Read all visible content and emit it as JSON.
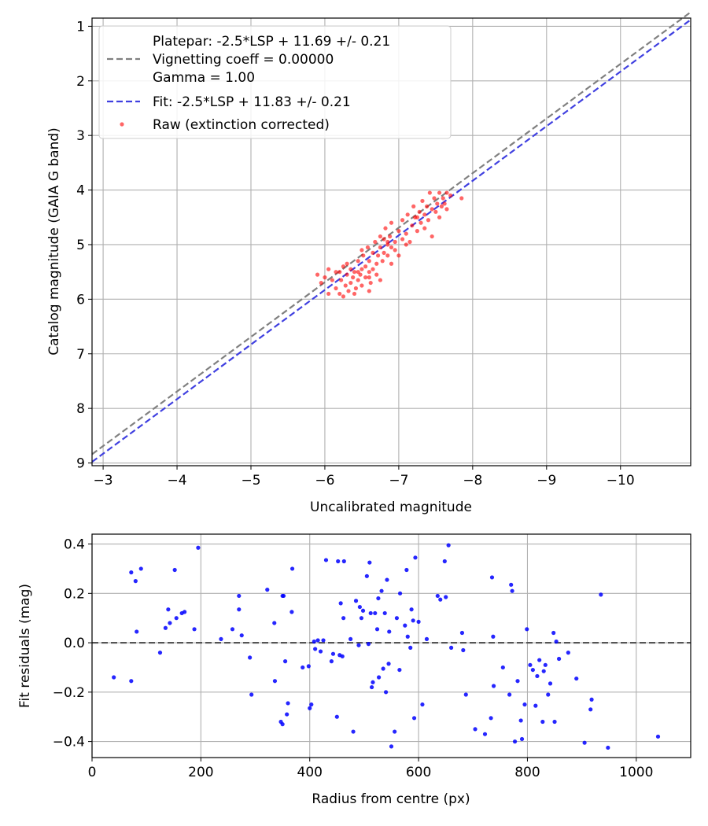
{
  "chart_data": [
    {
      "type": "scatter",
      "xlabel": "Uncalibrated magnitude",
      "ylabel": "Catalog magnitude (GAIA G band)",
      "xlim": [
        -2.85,
        -10.95
      ],
      "ylim": [
        9.05,
        0.85
      ],
      "x_ticks": [
        -3,
        -4,
        -5,
        -6,
        -7,
        -8,
        -9,
        -10
      ],
      "x_tick_labels": [
        "−3",
        "−4",
        "−5",
        "−6",
        "−7",
        "−8",
        "−9",
        "−10"
      ],
      "y_ticks": [
        1,
        2,
        3,
        4,
        5,
        6,
        7,
        8,
        9
      ],
      "y_tick_labels": [
        "1",
        "2",
        "3",
        "4",
        "5",
        "6",
        "7",
        "8",
        "9"
      ],
      "grid": true,
      "legend_position": "top-left",
      "legend": {
        "platepar_lines": [
          "Platepar: -2.5*LSP + 11.69 +/- 0.21",
          "Vignetting coeff = 0.00000",
          "Gamma = 1.00"
        ],
        "fit": "Fit: -2.5*LSP + 11.83 +/- 0.21",
        "raw": "Raw (extinction corrected)"
      },
      "lines": [
        {
          "name": "Platepar",
          "x": [
            -2.85,
            -10.95
          ],
          "y": [
            8.84,
            0.74
          ],
          "color": "#808080",
          "dash": true
        },
        {
          "name": "Fit",
          "x": [
            -2.85,
            -10.95
          ],
          "y": [
            8.98,
            0.88
          ],
          "color": "#4040e0",
          "dash": true
        }
      ],
      "series": [
        {
          "name": "Raw (extinction corrected)",
          "color": "#ff0000",
          "points": [
            [
              -5.9,
              5.55
            ],
            [
              -5.95,
              5.7
            ],
            [
              -6.05,
              5.45
            ],
            [
              -6.1,
              5.65
            ],
            [
              -6.15,
              5.8
            ],
            [
              -6.2,
              5.9
            ],
            [
              -6.2,
              5.5
            ],
            [
              -6.22,
              5.65
            ],
            [
              -6.25,
              5.4
            ],
            [
              -6.28,
              5.75
            ],
            [
              -6.3,
              5.55
            ],
            [
              -6.32,
              5.85
            ],
            [
              -6.35,
              5.45
            ],
            [
              -6.35,
              5.7
            ],
            [
              -6.38,
              5.6
            ],
            [
              -6.4,
              5.5
            ],
            [
              -6.42,
              5.8
            ],
            [
              -6.45,
              5.3
            ],
            [
              -6.45,
              5.65
            ],
            [
              -6.48,
              5.55
            ],
            [
              -6.5,
              5.45
            ],
            [
              -6.5,
              5.75
            ],
            [
              -6.52,
              5.2
            ],
            [
              -6.55,
              5.6
            ],
            [
              -6.55,
              5.4
            ],
            [
              -6.58,
              5.05
            ],
            [
              -6.6,
              5.5
            ],
            [
              -6.6,
              5.3
            ],
            [
              -6.62,
              5.7
            ],
            [
              -6.65,
              5.45
            ],
            [
              -6.65,
              5.15
            ],
            [
              -6.68,
              4.95
            ],
            [
              -6.7,
              5.35
            ],
            [
              -6.7,
              5.55
            ],
            [
              -6.72,
              5.2
            ],
            [
              -6.75,
              4.85
            ],
            [
              -6.75,
              5.05
            ],
            [
              -6.78,
              5.3
            ],
            [
              -6.8,
              4.9
            ],
            [
              -6.8,
              5.15
            ],
            [
              -6.82,
              4.7
            ],
            [
              -6.85,
              5.0
            ],
            [
              -6.85,
              5.2
            ],
            [
              -6.88,
              4.85
            ],
            [
              -6.9,
              5.05
            ],
            [
              -6.9,
              4.6
            ],
            [
              -6.95,
              4.95
            ],
            [
              -6.95,
              5.1
            ],
            [
              -7.0,
              4.75
            ],
            [
              -7.05,
              4.9
            ],
            [
              -7.05,
              4.55
            ],
            [
              -7.1,
              4.8
            ],
            [
              -7.12,
              4.45
            ],
            [
              -7.15,
              4.95
            ],
            [
              -7.18,
              4.65
            ],
            [
              -7.2,
              4.3
            ],
            [
              -7.22,
              4.5
            ],
            [
              -7.25,
              4.75
            ],
            [
              -7.28,
              4.4
            ],
            [
              -7.3,
              4.6
            ],
            [
              -7.32,
              4.2
            ],
            [
              -7.35,
              4.45
            ],
            [
              -7.38,
              4.3
            ],
            [
              -7.4,
              4.55
            ],
            [
              -7.42,
              4.05
            ],
            [
              -7.45,
              4.35
            ],
            [
              -7.48,
              4.15
            ],
            [
              -7.5,
              4.4
            ],
            [
              -7.52,
              4.25
            ],
            [
              -7.55,
              4.05
            ],
            [
              -7.58,
              4.3
            ],
            [
              -7.6,
              4.15
            ],
            [
              -7.62,
              4.25
            ],
            [
              -7.65,
              4.05
            ],
            [
              -7.7,
              4.1
            ],
            [
              -7.85,
              4.15
            ],
            [
              -7.35,
              4.7
            ],
            [
              -7.45,
              4.85
            ],
            [
              -7.1,
              5.0
            ],
            [
              -6.3,
              5.35
            ],
            [
              -6.4,
              5.9
            ],
            [
              -6.05,
              5.9
            ],
            [
              -6.0,
              5.6
            ],
            [
              -6.6,
              5.85
            ],
            [
              -6.75,
              5.65
            ],
            [
              -6.9,
              5.35
            ],
            [
              -7.0,
              5.2
            ],
            [
              -6.15,
              5.5
            ],
            [
              -6.25,
              5.95
            ],
            [
              -6.5,
              5.1
            ],
            [
              -6.85,
              4.95
            ],
            [
              -7.25,
              4.5
            ],
            [
              -7.55,
              4.5
            ],
            [
              -7.65,
              4.35
            ],
            [
              -6.45,
              5.5
            ],
            [
              -6.6,
              5.6
            ]
          ]
        }
      ]
    },
    {
      "type": "scatter",
      "xlabel": "Radius from centre (px)",
      "ylabel": "Fit residuals (mag)",
      "xlim": [
        0,
        1100
      ],
      "ylim": [
        -0.465,
        0.44
      ],
      "x_ticks": [
        0,
        200,
        400,
        600,
        800,
        1000
      ],
      "x_tick_labels": [
        "0",
        "200",
        "400",
        "600",
        "800",
        "1000"
      ],
      "y_ticks": [
        -0.4,
        -0.2,
        0.0,
        0.2,
        0.4
      ],
      "y_tick_labels": [
        "−0.4",
        "−0.2",
        "0.0",
        "0.2",
        "0.4"
      ],
      "grid": true,
      "lines": [
        {
          "name": "zero",
          "x": [
            0,
            1100
          ],
          "y": [
            0,
            0
          ],
          "color": "#555555",
          "dash": true
        }
      ],
      "series": [
        {
          "name": "residuals",
          "color": "#0000ff",
          "points": [
            [
              40,
              -0.14
            ],
            [
              72,
              0.285
            ],
            [
              72,
              -0.155
            ],
            [
              80,
              0.25
            ],
            [
              82,
              0.045
            ],
            [
              90,
              0.3
            ],
            [
              125,
              -0.04
            ],
            [
              135,
              0.06
            ],
            [
              140,
              0.135
            ],
            [
              143,
              0.08
            ],
            [
              152,
              0.295
            ],
            [
              155,
              0.1
            ],
            [
              165,
              0.12
            ],
            [
              170,
              0.125
            ],
            [
              188,
              0.055
            ],
            [
              195,
              0.385
            ],
            [
              237,
              0.015
            ],
            [
              258,
              0.055
            ],
            [
              270,
              0.19
            ],
            [
              270,
              0.135
            ],
            [
              275,
              0.03
            ],
            [
              290,
              -0.06
            ],
            [
              293,
              -0.21
            ],
            [
              322,
              0.215
            ],
            [
              335,
              0.08
            ],
            [
              336,
              -0.155
            ],
            [
              347,
              -0.32
            ],
            [
              350,
              -0.33
            ],
            [
              350,
              0.19
            ],
            [
              352,
              0.19
            ],
            [
              355,
              -0.075
            ],
            [
              358,
              -0.29
            ],
            [
              360,
              -0.245
            ],
            [
              367,
              0.125
            ],
            [
              368,
              0.3
            ],
            [
              387,
              -0.1
            ],
            [
              398,
              -0.095
            ],
            [
              400,
              -0.265
            ],
            [
              403,
              -0.25
            ],
            [
              408,
              0.005
            ],
            [
              410,
              -0.025
            ],
            [
              415,
              0.01
            ],
            [
              420,
              -0.035
            ],
            [
              425,
              0.01
            ],
            [
              430,
              0.335
            ],
            [
              440,
              -0.075
            ],
            [
              443,
              -0.045
            ],
            [
              450,
              -0.3
            ],
            [
              452,
              0.33
            ],
            [
              455,
              -0.05
            ],
            [
              457,
              0.16
            ],
            [
              460,
              -0.055
            ],
            [
              462,
              0.1
            ],
            [
              463,
              0.33
            ],
            [
              475,
              0.015
            ],
            [
              480,
              -0.36
            ],
            [
              485,
              0.17
            ],
            [
              490,
              -0.01
            ],
            [
              492,
              0.145
            ],
            [
              495,
              0.1
            ],
            [
              498,
              0.13
            ],
            [
              505,
              0.27
            ],
            [
              508,
              -0.005
            ],
            [
              510,
              0.325
            ],
            [
              512,
              0.12
            ],
            [
              514,
              -0.18
            ],
            [
              516,
              -0.16
            ],
            [
              520,
              0.12
            ],
            [
              524,
              0.055
            ],
            [
              526,
              0.18
            ],
            [
              527,
              -0.14
            ],
            [
              532,
              0.21
            ],
            [
              535,
              -0.105
            ],
            [
              538,
              0.12
            ],
            [
              540,
              -0.2
            ],
            [
              542,
              0.255
            ],
            [
              545,
              -0.085
            ],
            [
              546,
              0.045
            ],
            [
              550,
              -0.42
            ],
            [
              556,
              -0.36
            ],
            [
              560,
              0.1
            ],
            [
              565,
              -0.11
            ],
            [
              566,
              0.2
            ],
            [
              575,
              0.07
            ],
            [
              578,
              0.295
            ],
            [
              580,
              0.025
            ],
            [
              585,
              -0.02
            ],
            [
              587,
              0.135
            ],
            [
              590,
              0.09
            ],
            [
              592,
              -0.305
            ],
            [
              594,
              0.345
            ],
            [
              600,
              0.085
            ],
            [
              607,
              -0.25
            ],
            [
              615,
              0.015
            ],
            [
              635,
              0.19
            ],
            [
              640,
              0.175
            ],
            [
              648,
              0.33
            ],
            [
              650,
              0.185
            ],
            [
              655,
              0.395
            ],
            [
              660,
              -0.02
            ],
            [
              680,
              0.04
            ],
            [
              682,
              -0.03
            ],
            [
              687,
              -0.21
            ],
            [
              704,
              -0.35
            ],
            [
              722,
              -0.37
            ],
            [
              733,
              -0.305
            ],
            [
              735,
              0.265
            ],
            [
              737,
              0.025
            ],
            [
              738,
              -0.175
            ],
            [
              755,
              -0.1
            ],
            [
              767,
              -0.21
            ],
            [
              770,
              0.235
            ],
            [
              772,
              0.21
            ],
            [
              777,
              -0.4
            ],
            [
              782,
              -0.155
            ],
            [
              788,
              -0.315
            ],
            [
              790,
              -0.39
            ],
            [
              795,
              -0.25
            ],
            [
              799,
              0.055
            ],
            [
              805,
              -0.09
            ],
            [
              810,
              -0.11
            ],
            [
              815,
              -0.255
            ],
            [
              818,
              -0.135
            ],
            [
              822,
              -0.07
            ],
            [
              828,
              -0.32
            ],
            [
              830,
              -0.115
            ],
            [
              833,
              -0.09
            ],
            [
              838,
              -0.21
            ],
            [
              842,
              -0.165
            ],
            [
              848,
              0.04
            ],
            [
              850,
              -0.32
            ],
            [
              853,
              0.005
            ],
            [
              858,
              -0.065
            ],
            [
              875,
              -0.04
            ],
            [
              890,
              -0.145
            ],
            [
              905,
              -0.405
            ],
            [
              916,
              -0.27
            ],
            [
              918,
              -0.23
            ],
            [
              935,
              0.195
            ],
            [
              948,
              -0.425
            ],
            [
              1040,
              -0.38
            ]
          ]
        }
      ]
    }
  ]
}
